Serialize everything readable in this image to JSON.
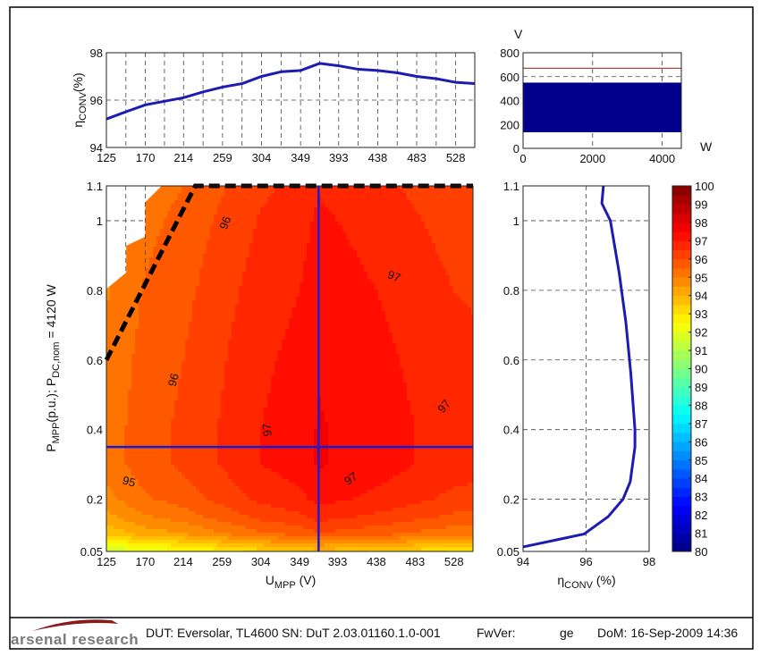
{
  "footer": {
    "logo_text": "arsenal research",
    "dut": "DUT: Eversolar, TL4600",
    "sn": "SN: DuT 2.03.01160.1.0-001",
    "fwver_label": "FwVer:",
    "fwver_value": "ge",
    "dom": "DoM: 16-Sep-2009 14:36"
  },
  "colors": {
    "line": "#1c1cb0",
    "band": "#00008c",
    "limit_line": "#b04848",
    "boundary": "#000000",
    "logo_swoosh": "#8b1a1a"
  },
  "chart_data": [
    {
      "type": "line",
      "ylabel": {
        "symbol": "η",
        "sub": "CONV",
        "suffix": "(%)"
      },
      "xlim": [
        125,
        550
      ],
      "ylim": [
        94,
        98
      ],
      "xticks": [
        125,
        170,
        214,
        259,
        304,
        349,
        393,
        438,
        483,
        528
      ],
      "yticks": [
        94,
        96,
        98
      ],
      "grid": true,
      "x": [
        125,
        147,
        170,
        192,
        214,
        237,
        259,
        282,
        304,
        327,
        349,
        371,
        393,
        416,
        438,
        461,
        483,
        506,
        528,
        550
      ],
      "y": [
        95.2,
        95.5,
        95.8,
        95.95,
        96.1,
        96.35,
        96.55,
        96.7,
        97.0,
        97.2,
        97.25,
        97.55,
        97.45,
        97.3,
        97.25,
        97.15,
        97.0,
        96.9,
        96.75,
        96.7
      ]
    },
    {
      "type": "area",
      "xlabel": "W",
      "ylabel": "V",
      "xlim": [
        0,
        4550
      ],
      "ylim": [
        0,
        800
      ],
      "xticks": [
        0,
        2000,
        4000
      ],
      "yticks": [
        0,
        200,
        400,
        600,
        800
      ],
      "grid": true,
      "band": {
        "V_min": 135,
        "V_max": 550
      },
      "limit_line_V": 670
    },
    {
      "type": "heatmap",
      "xlabel": {
        "main": "U",
        "sub": "MPP",
        "suffix": " (V)"
      },
      "ylabel": {
        "p1": "P",
        "s1": "MPP",
        "p2": "(p.u.); P",
        "s2": "DC,nom",
        "p3": " = 4120 W"
      },
      "xlim": [
        125,
        550
      ],
      "ylim": [
        0.05,
        1.1
      ],
      "xticks": [
        125,
        170,
        214,
        259,
        304,
        349,
        393,
        438,
        483,
        528
      ],
      "yticks": [
        0.05,
        0.2,
        0.4,
        0.6,
        0.8,
        1,
        1.1
      ],
      "x": [
        125,
        170,
        214,
        259,
        304,
        349,
        371,
        393,
        438,
        483,
        528,
        550
      ],
      "y": [
        0.05,
        0.1,
        0.15,
        0.2,
        0.3,
        0.4,
        0.6,
        0.8,
        1.0,
        1.1
      ],
      "z": [
        [
          91.4,
          92.0,
          92.3,
          92.75,
          93.2,
          93.45,
          93.75,
          93.65,
          93.45,
          93.2,
          92.95,
          92.9
        ],
        [
          93.6,
          94.2,
          94.5,
          94.95,
          95.4,
          95.65,
          95.95,
          95.85,
          95.65,
          95.4,
          95.15,
          95.1
        ],
        [
          94.35,
          94.95,
          95.25,
          95.7,
          96.15,
          96.4,
          96.7,
          96.6,
          96.4,
          96.15,
          95.9,
          95.85
        ],
        [
          94.82,
          95.42,
          95.72,
          96.17,
          96.62,
          96.87,
          97.17,
          97.07,
          96.87,
          96.62,
          96.37,
          96.32
        ],
        [
          95.2,
          95.8,
          96.1,
          96.55,
          97.0,
          97.25,
          97.55,
          97.45,
          97.25,
          97.0,
          96.75,
          96.7
        ],
        [
          95.2,
          95.8,
          96.1,
          96.55,
          97.0,
          97.25,
          97.55,
          97.45,
          97.25,
          97.0,
          96.75,
          96.7
        ],
        [
          95.1,
          95.7,
          96.0,
          96.45,
          96.9,
          97.15,
          97.45,
          97.35,
          97.15,
          96.9,
          96.65,
          96.6
        ],
        [
          94.95,
          95.55,
          95.85,
          96.3,
          96.75,
          97.0,
          97.3,
          97.2,
          97.0,
          96.75,
          96.5,
          96.45
        ],
        [
          94.75,
          95.35,
          95.65,
          96.1,
          96.55,
          96.8,
          97.1,
          97.0,
          96.8,
          96.55,
          96.3,
          96.25
        ],
        [
          94.6,
          95.2,
          95.5,
          95.95,
          96.4,
          96.65,
          96.95,
          96.85,
          96.65,
          96.4,
          96.15,
          96.1
        ]
      ],
      "no_data_region": [
        [
          125,
          0.804
        ],
        [
          148,
          0.851
        ],
        [
          148,
          0.928
        ],
        [
          170,
          0.954
        ],
        [
          170,
          1.053
        ],
        [
          189,
          1.1
        ],
        [
          125,
          1.1
        ]
      ],
      "boundary_line": [
        [
          125,
          0.6
        ],
        [
          228,
          1.1
        ],
        [
          550,
          1.1
        ]
      ],
      "crosshair": {
        "U_MPP": 371,
        "P_MPP": 0.35
      },
      "contour_labels": [
        {
          "text": "96",
          "U": 267,
          "P": 0.99
        },
        {
          "text": "96",
          "U": 207,
          "P": 0.54
        },
        {
          "text": "97",
          "U": 457,
          "P": 0.83
        },
        {
          "text": "97",
          "U": 316,
          "P": 0.4
        },
        {
          "text": "97",
          "U": 520,
          "P": 0.46
        },
        {
          "text": "97",
          "U": 411,
          "P": 0.25
        },
        {
          "text": "95",
          "U": 150,
          "P": 0.24
        }
      ],
      "colorbar": {
        "range": [
          80,
          100
        ],
        "ticks": [
          80,
          81,
          82,
          83,
          84,
          85,
          86,
          87,
          88,
          89,
          90,
          91,
          92,
          93,
          94,
          95,
          96,
          97,
          98,
          99,
          100
        ],
        "colormap": "jet"
      }
    },
    {
      "type": "line",
      "xlabel": {
        "symbol": "η",
        "sub": "CONV",
        "suffix": " (%)"
      },
      "xlim": [
        94,
        98
      ],
      "ylim": [
        0.05,
        1.1
      ],
      "xticks": [
        94,
        96,
        98
      ],
      "yticks": [
        0.05,
        0.2,
        0.4,
        0.6,
        0.8,
        1,
        1.1
      ],
      "grid": true,
      "x": [
        96.55,
        96.5,
        96.77,
        97.05,
        97.26,
        97.42,
        97.55,
        97.55,
        97.4,
        97.17,
        96.7,
        95.94,
        94.0
      ],
      "y": [
        1.1,
        1.05,
        1.0,
        0.85,
        0.71,
        0.56,
        0.4,
        0.35,
        0.25,
        0.2,
        0.15,
        0.1,
        0.063
      ]
    }
  ]
}
